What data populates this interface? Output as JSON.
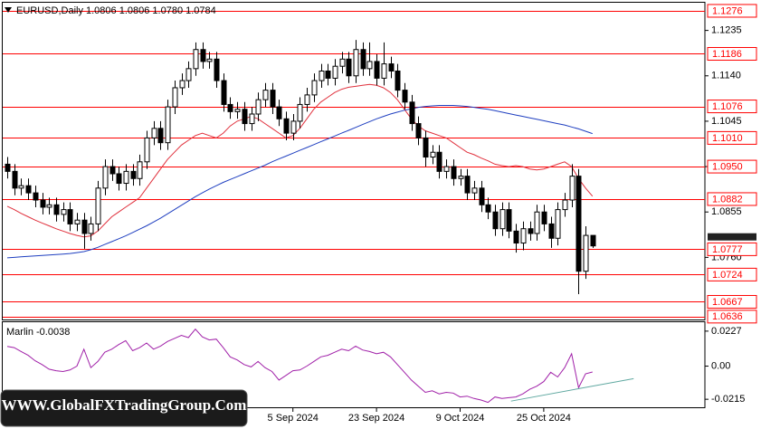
{
  "watermark": "WWW.GlobalFXTradingGroup.Com",
  "chart_data": [
    {
      "type": "candlestick",
      "title": "EURUSD,Daily  1.0806 1.0806 1.0780 1.0784",
      "categories": [
        null,
        null,
        null,
        null,
        null,
        null,
        null,
        null,
        null,
        null,
        null,
        null,
        null,
        null,
        null,
        null,
        null,
        null,
        null,
        null,
        null,
        null,
        null,
        null,
        null,
        null,
        null,
        null,
        null,
        null,
        null,
        null,
        null,
        null,
        null,
        null,
        null,
        null,
        null,
        null,
        null,
        "5 Sep 2024",
        null,
        null,
        null,
        null,
        null,
        null,
        null,
        null,
        null,
        null,
        null,
        "23 Sep 2024",
        null,
        null,
        null,
        null,
        null,
        null,
        null,
        null,
        null,
        null,
        null,
        "9 Oct 2024",
        null,
        null,
        null,
        null,
        null,
        null,
        null,
        null,
        null,
        null,
        null,
        "25 Oct 2024",
        null,
        null,
        null,
        null,
        null,
        null,
        null
      ],
      "open": [
        1.0955,
        1.094,
        1.0905,
        1.091,
        1.0895,
        1.088,
        1.0865,
        1.087,
        1.085,
        1.086,
        1.083,
        1.0838,
        1.081,
        1.083,
        1.0905,
        1.095,
        1.0935,
        1.0915,
        1.094,
        1.0925,
        1.096,
        1.101,
        1.103,
        1.1,
        1.1075,
        1.1115,
        1.113,
        1.1155,
        1.1195,
        1.117,
        1.1175,
        1.113,
        1.108,
        1.1065,
        1.107,
        1.104,
        1.106,
        1.109,
        1.111,
        1.1075,
        1.105,
        1.102,
        1.1045,
        1.108,
        1.11,
        1.113,
        1.115,
        1.1135,
        1.116,
        1.1175,
        1.114,
        1.1195,
        1.1155,
        1.117,
        1.1135,
        1.1165,
        1.115,
        1.111,
        1.1085,
        1.104,
        1.101,
        1.097,
        1.098,
        1.094,
        1.095,
        1.0925,
        1.093,
        1.0895,
        1.0905,
        1.087,
        1.0855,
        1.082,
        1.086,
        1.0815,
        1.079,
        1.082,
        1.081,
        1.0855,
        1.083,
        1.08,
        1.086,
        1.088,
        1.093,
        1.0731,
        1.0806
      ],
      "high": [
        1.097,
        1.0955,
        1.0925,
        1.0925,
        1.091,
        1.0895,
        1.0885,
        1.0885,
        1.0875,
        1.0875,
        1.0853,
        1.0853,
        1.0845,
        1.092,
        1.0965,
        1.0965,
        1.095,
        1.0955,
        1.0955,
        1.0975,
        1.1025,
        1.1045,
        1.1045,
        1.109,
        1.113,
        1.1145,
        1.117,
        1.121,
        1.121,
        1.119,
        1.119,
        1.1145,
        1.1095,
        1.1085,
        1.1085,
        1.1075,
        1.1105,
        1.1125,
        1.1125,
        1.109,
        1.1065,
        1.106,
        1.1095,
        1.1115,
        1.1145,
        1.1165,
        1.1165,
        1.1175,
        1.119,
        1.119,
        1.1215,
        1.121,
        1.121,
        1.1185,
        1.121,
        1.118,
        1.1165,
        1.1125,
        1.11,
        1.1055,
        1.1025,
        1.0995,
        1.0995,
        1.0965,
        1.0965,
        1.0945,
        1.0945,
        1.092,
        1.092,
        1.0885,
        1.087,
        1.0875,
        1.0875,
        1.083,
        1.0835,
        1.0835,
        1.087,
        1.087,
        1.0845,
        1.0875,
        1.0895,
        1.0955,
        1.0945,
        1.0825,
        1.0806
      ],
      "low": [
        1.0925,
        1.089,
        1.089,
        1.088,
        1.0865,
        1.085,
        1.085,
        1.0835,
        1.0835,
        1.0815,
        1.0815,
        1.0778,
        1.0795,
        1.0815,
        1.089,
        1.092,
        1.09,
        1.09,
        1.091,
        1.091,
        1.0945,
        1.0995,
        1.0985,
        1.0985,
        1.106,
        1.11,
        1.1115,
        1.114,
        1.1155,
        1.1155,
        1.1115,
        1.1065,
        1.105,
        1.105,
        1.1025,
        1.1025,
        1.1045,
        1.1075,
        1.106,
        1.1035,
        1.1005,
        1.1005,
        1.103,
        1.1065,
        1.1085,
        1.1115,
        1.112,
        1.112,
        1.1145,
        1.1125,
        1.1125,
        1.114,
        1.114,
        1.112,
        1.112,
        1.1135,
        1.1095,
        1.107,
        1.1025,
        1.0995,
        1.095,
        1.0955,
        1.0925,
        1.0925,
        1.091,
        1.091,
        1.088,
        1.088,
        1.0855,
        1.084,
        1.0805,
        1.0805,
        1.08,
        1.077,
        1.0775,
        1.0795,
        1.0795,
        1.0815,
        1.078,
        1.0785,
        1.0845,
        1.0865,
        1.0683,
        1.0715,
        1.078
      ],
      "close": [
        1.094,
        1.0905,
        1.091,
        1.0895,
        1.088,
        1.0865,
        1.087,
        1.085,
        1.086,
        1.083,
        1.0838,
        1.081,
        1.083,
        1.0905,
        1.095,
        1.0935,
        1.0915,
        1.094,
        1.0925,
        1.096,
        1.101,
        1.103,
        1.1,
        1.1075,
        1.1115,
        1.113,
        1.1155,
        1.1195,
        1.117,
        1.1175,
        1.113,
        1.108,
        1.1065,
        1.107,
        1.104,
        1.106,
        1.109,
        1.111,
        1.1075,
        1.105,
        1.102,
        1.1045,
        1.108,
        1.11,
        1.113,
        1.115,
        1.1135,
        1.116,
        1.1175,
        1.114,
        1.1195,
        1.1155,
        1.117,
        1.1135,
        1.1165,
        1.115,
        1.111,
        1.1085,
        1.104,
        1.101,
        1.097,
        1.098,
        1.094,
        1.095,
        1.0925,
        1.093,
        1.0895,
        1.0905,
        1.087,
        1.0855,
        1.082,
        1.086,
        1.0815,
        1.079,
        1.082,
        1.081,
        1.0855,
        1.083,
        1.08,
        1.086,
        1.088,
        1.093,
        1.0731,
        1.0806,
        1.0784
      ],
      "up_color": "#ffffff",
      "down_color": "#000000",
      "series": [
        {
          "color": "#e0303c",
          "values": [
            1.0867,
            1.086,
            1.0852,
            1.0845,
            1.0838,
            1.0832,
            1.0826,
            1.082,
            1.0815,
            1.081,
            1.0806,
            1.0803,
            1.0805,
            1.0815,
            1.083,
            1.0845,
            1.0855,
            1.0865,
            1.0875,
            1.0885,
            1.0905,
            1.0925,
            1.0945,
            1.0965,
            1.098,
            1.0995,
            1.1005,
            1.1015,
            1.102,
            1.1015,
            1.101,
            1.102,
            1.1035,
            1.1045,
            1.105,
            1.1055,
            1.105,
            1.104,
            1.103,
            1.102,
            1.101,
            1.1015,
            1.103,
            1.105,
            1.107,
            1.1085,
            1.1095,
            1.1105,
            1.1112,
            1.1116,
            1.1118,
            1.112,
            1.1122,
            1.112,
            1.1115,
            1.1105,
            1.109,
            1.107,
            1.105,
            1.1035,
            1.1025,
            1.102,
            1.1015,
            1.101,
            1.1,
            1.099,
            1.098,
            1.0975,
            1.0968,
            1.0962,
            1.0955,
            1.0952,
            1.095,
            1.0952,
            1.095,
            1.0945,
            1.0943,
            1.0945,
            1.095,
            1.0955,
            1.096,
            1.095,
            1.0925,
            1.0905,
            1.0888
          ]
        },
        {
          "color": "#1f3fc0",
          "values": [
            1.0759,
            1.076,
            1.0761,
            1.0762,
            1.0763,
            1.0764,
            1.0765,
            1.0766,
            1.0767,
            1.0768,
            1.077,
            1.0772,
            1.0776,
            1.0781,
            1.0787,
            1.0793,
            1.0799,
            1.0805,
            1.0812,
            1.0819,
            1.0826,
            1.0834,
            1.0842,
            1.0851,
            1.086,
            1.0869,
            1.0878,
            1.0887,
            1.0895,
            1.0903,
            1.091,
            1.0917,
            1.0923,
            1.0929,
            1.0935,
            1.0941,
            1.0947,
            1.0953,
            1.096,
            1.0966,
            1.0972,
            1.0978,
            1.0984,
            1.099,
            1.0996,
            1.1002,
            1.1008,
            1.1014,
            1.102,
            1.1026,
            1.1032,
            1.1038,
            1.1044,
            1.105,
            1.1055,
            1.106,
            1.1064,
            1.1068,
            1.1071,
            1.1074,
            1.1076,
            1.1077,
            1.1078,
            1.1078,
            1.1078,
            1.1077,
            1.1076,
            1.1074,
            1.1072,
            1.107,
            1.1067,
            1.1064,
            1.1061,
            1.1058,
            1.1055,
            1.1052,
            1.1049,
            1.1046,
            1.1043,
            1.104,
            1.1037,
            1.1033,
            1.1029,
            1.1024,
            1.1019
          ]
        }
      ],
      "ylim": [
        1.063,
        1.1293
      ],
      "yticks": [
        {
          "value": 1.1235,
          "label": "1.1235"
        },
        {
          "value": 1.114,
          "label": "1.1140"
        },
        {
          "value": 1.1045,
          "label": "1.1045"
        },
        {
          "value": 1.095,
          "label": "1.0950"
        },
        {
          "value": 1.0855,
          "label": "1.0855"
        },
        {
          "value": 1.076,
          "label": "1.0760"
        }
      ],
      "level_color": "#ff0000",
      "levels": [
        {
          "value": 1.1276,
          "label": "1.1276"
        },
        {
          "value": 1.1186,
          "label": "1.1186"
        },
        {
          "value": 1.1076,
          "label": "1.1076"
        },
        {
          "value": 1.101,
          "label": "1.1010"
        },
        {
          "value": 1.095,
          "label": "1.0950"
        },
        {
          "value": 1.0882,
          "label": "1.0882"
        },
        {
          "value": 1.0777,
          "label": "1.0777"
        },
        {
          "value": 1.0724,
          "label": "1.0724"
        },
        {
          "value": 1.0667,
          "label": "1.0667"
        },
        {
          "value": 1.0636,
          "label": "1.0636"
        }
      ]
    },
    {
      "type": "line",
      "title": "Marlin -0.0038",
      "series": [
        {
          "color": "#a020a8",
          "values": [
            0.0128,
            0.012,
            0.0095,
            0.007,
            0.0035,
            0.001,
            -0.002,
            -0.003,
            -0.0035,
            -0.0025,
            0.0,
            0.011,
            -0.001,
            0.003,
            0.009,
            0.011,
            0.014,
            0.0165,
            0.01,
            0.012,
            0.015,
            0.011,
            0.013,
            0.016,
            0.018,
            0.02,
            0.0185,
            0.024,
            0.019,
            0.017,
            0.0175,
            0.012,
            0.006,
            0.004,
            0.001,
            -0.0005,
            0.003,
            -0.001,
            -0.0035,
            -0.009,
            -0.006,
            -0.003,
            -0.0025,
            0.0,
            0.003,
            0.006,
            0.007,
            0.009,
            0.011,
            0.01,
            0.013,
            0.0105,
            0.0095,
            0.008,
            0.009,
            0.006,
            0.001,
            -0.004,
            -0.009,
            -0.013,
            -0.017,
            -0.016,
            -0.018,
            -0.017,
            -0.0175,
            -0.02,
            -0.0195,
            -0.021,
            -0.022,
            -0.0235,
            -0.02,
            -0.021,
            -0.0205,
            -0.02,
            -0.018,
            -0.015,
            -0.013,
            -0.01,
            -0.004,
            -0.007,
            -0.001,
            0.008,
            -0.014,
            -0.005,
            -0.0038
          ]
        }
      ],
      "trendline": {
        "color": "#5fa8a0",
        "x": [
          72.3,
          89.9
        ],
        "values": [
          -0.0227,
          -0.0081
        ]
      },
      "ylim": [
        -0.0267,
        0.0285
      ],
      "yticks": [
        0.0227,
        {
          "value": 0,
          "label": "0.00"
        },
        -0.0215
      ]
    }
  ]
}
